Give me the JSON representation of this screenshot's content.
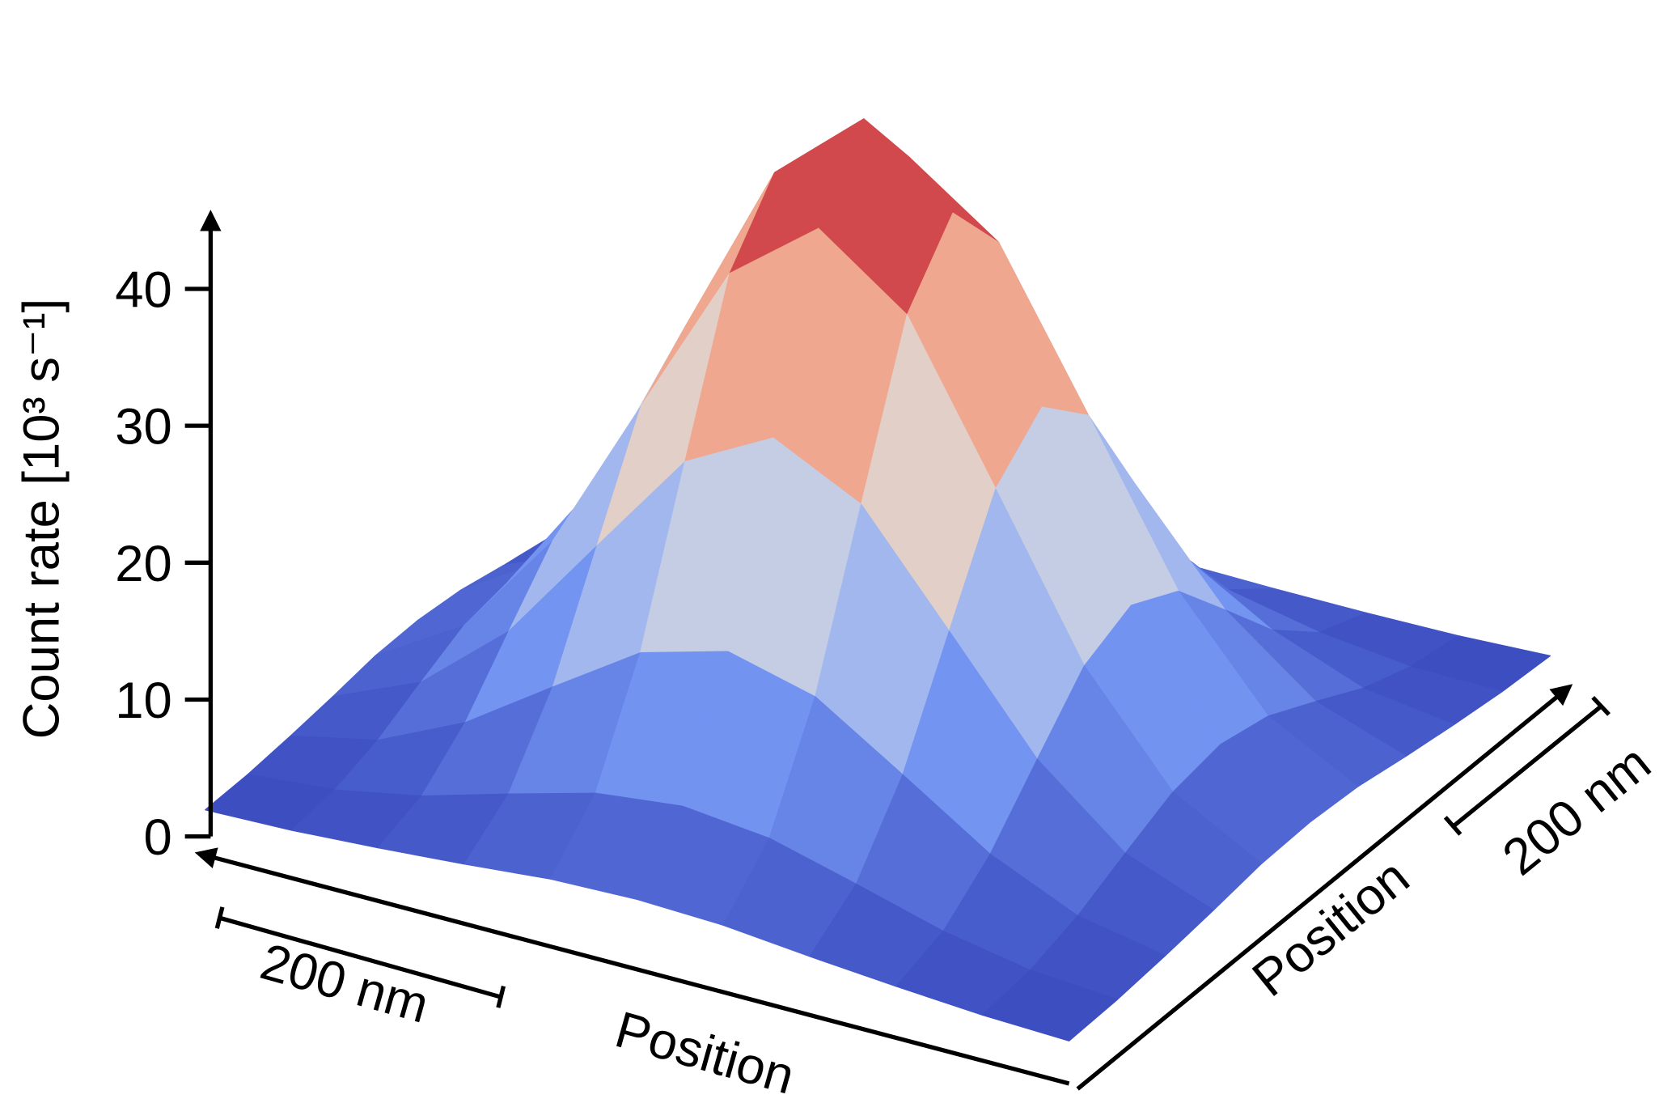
{
  "chart_data": {
    "type": "surface",
    "z_label": "Count rate [10³ s⁻¹]",
    "x_label": "Position",
    "y_label": "Position",
    "x_scalebar": "200 nm",
    "y_scalebar": "200 nm",
    "zlim": [
      0,
      45
    ],
    "zticks": [
      0,
      10,
      20,
      30,
      40
    ],
    "colormap": "coolwarm",
    "z": [
      [
        2.1,
        2.3,
        2.7,
        3.2,
        3.8,
        4.0,
        3.8,
        3.2,
        2.7,
        2.3,
        2.1
      ],
      [
        2.3,
        2.8,
        4.0,
        5.8,
        7.5,
        8.2,
        7.5,
        5.8,
        4.0,
        2.8,
        2.3
      ],
      [
        2.7,
        4.0,
        6.9,
        11.1,
        15.2,
        16.9,
        15.2,
        11.1,
        6.9,
        4.0,
        2.7
      ],
      [
        3.2,
        5.8,
        11.1,
        18.9,
        26.6,
        29.9,
        26.6,
        18.9,
        11.1,
        5.8,
        3.2
      ],
      [
        3.8,
        7.5,
        15.2,
        26.6,
        37.8,
        42.6,
        37.8,
        26.6,
        15.2,
        7.5,
        3.8
      ],
      [
        4.0,
        8.2,
        16.9,
        29.9,
        42.6,
        48.0,
        42.6,
        29.9,
        16.9,
        8.2,
        4.0
      ],
      [
        3.8,
        7.5,
        15.2,
        26.6,
        37.8,
        42.6,
        37.8,
        26.6,
        15.2,
        7.5,
        3.8
      ],
      [
        3.2,
        5.8,
        11.1,
        18.9,
        26.6,
        29.9,
        26.6,
        18.9,
        11.1,
        5.8,
        3.2
      ],
      [
        2.7,
        4.0,
        6.9,
        11.1,
        15.2,
        16.9,
        15.2,
        11.1,
        6.9,
        4.0,
        2.7
      ],
      [
        2.3,
        2.8,
        4.0,
        5.8,
        7.5,
        8.2,
        7.5,
        5.8,
        4.0,
        2.8,
        2.3
      ],
      [
        2.1,
        2.3,
        2.7,
        3.2,
        3.8,
        4.0,
        3.8,
        3.2,
        2.7,
        2.3,
        2.1
      ]
    ]
  }
}
